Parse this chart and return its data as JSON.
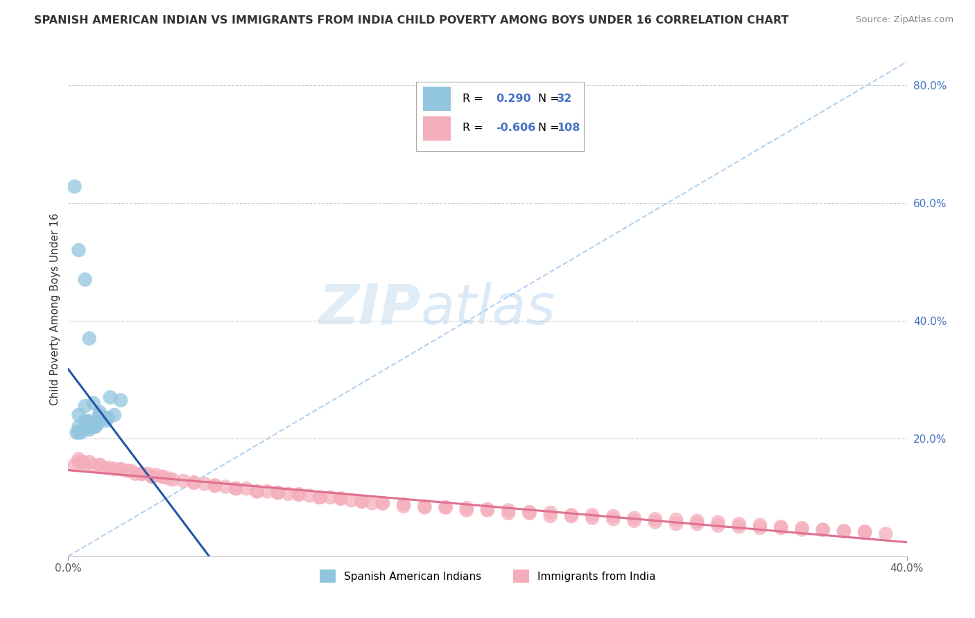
{
  "title": "SPANISH AMERICAN INDIAN VS IMMIGRANTS FROM INDIA CHILD POVERTY AMONG BOYS UNDER 16 CORRELATION CHART",
  "source": "Source: ZipAtlas.com",
  "ylabel": "Child Poverty Among Boys Under 16",
  "xlim": [
    0.0,
    0.4
  ],
  "ylim": [
    0.0,
    0.84
  ],
  "xticks": [
    0.0,
    0.4
  ],
  "xticklabels": [
    "0.0%",
    "40.0%"
  ],
  "yticks": [
    0.0,
    0.2,
    0.4,
    0.6,
    0.8
  ],
  "yticklabels": [
    "",
    "20.0%",
    "40.0%",
    "60.0%",
    "80.0%"
  ],
  "right_ytick_color": "#4472C4",
  "blue_color": "#92C5DE",
  "pink_color": "#F4AEBB",
  "blue_line_color": "#2255AA",
  "pink_line_color": "#E07090",
  "blue_R": 0.29,
  "blue_N": 32,
  "pink_R": -0.606,
  "pink_N": 108,
  "watermark_zip": "ZIP",
  "watermark_atlas": "atlas",
  "legend_R_color": "#000000",
  "legend_val_color": "#4472C4",
  "diag_line_color": "#AACCEE",
  "grid_color": "#CCCCCC",
  "blue_x": [
    0.003,
    0.005,
    0.008,
    0.01,
    0.012,
    0.005,
    0.008,
    0.015,
    0.01,
    0.02,
    0.008,
    0.005,
    0.01,
    0.015,
    0.012,
    0.018,
    0.022,
    0.008,
    0.005,
    0.012,
    0.016,
    0.01,
    0.006,
    0.009,
    0.014,
    0.007,
    0.011,
    0.013,
    0.018,
    0.004,
    0.025,
    0.019
  ],
  "blue_y": [
    0.628,
    0.52,
    0.47,
    0.37,
    0.26,
    0.24,
    0.255,
    0.24,
    0.23,
    0.27,
    0.23,
    0.22,
    0.225,
    0.245,
    0.22,
    0.235,
    0.24,
    0.215,
    0.21,
    0.22,
    0.235,
    0.215,
    0.21,
    0.22,
    0.225,
    0.215,
    0.225,
    0.22,
    0.23,
    0.21,
    0.265,
    0.235
  ],
  "pink_x": [
    0.003,
    0.005,
    0.007,
    0.01,
    0.008,
    0.012,
    0.015,
    0.018,
    0.02,
    0.022,
    0.025,
    0.028,
    0.03,
    0.032,
    0.035,
    0.038,
    0.04,
    0.042,
    0.045,
    0.048,
    0.05,
    0.055,
    0.06,
    0.065,
    0.07,
    0.075,
    0.08,
    0.085,
    0.09,
    0.095,
    0.1,
    0.105,
    0.11,
    0.115,
    0.12,
    0.125,
    0.13,
    0.135,
    0.14,
    0.145,
    0.15,
    0.16,
    0.17,
    0.18,
    0.19,
    0.2,
    0.21,
    0.22,
    0.23,
    0.24,
    0.25,
    0.26,
    0.27,
    0.28,
    0.29,
    0.3,
    0.31,
    0.32,
    0.33,
    0.34,
    0.35,
    0.36,
    0.37,
    0.38,
    0.005,
    0.015,
    0.025,
    0.035,
    0.045,
    0.06,
    0.08,
    0.1,
    0.12,
    0.14,
    0.16,
    0.18,
    0.2,
    0.22,
    0.24,
    0.26,
    0.28,
    0.3,
    0.32,
    0.34,
    0.36,
    0.38,
    0.04,
    0.07,
    0.09,
    0.11,
    0.13,
    0.15,
    0.17,
    0.19,
    0.21,
    0.23,
    0.25,
    0.27,
    0.29,
    0.31,
    0.33,
    0.35,
    0.37,
    0.39
  ],
  "pink_y": [
    0.155,
    0.165,
    0.16,
    0.16,
    0.155,
    0.155,
    0.155,
    0.15,
    0.15,
    0.148,
    0.148,
    0.145,
    0.145,
    0.14,
    0.14,
    0.14,
    0.135,
    0.138,
    0.135,
    0.132,
    0.13,
    0.128,
    0.125,
    0.123,
    0.12,
    0.118,
    0.115,
    0.115,
    0.11,
    0.11,
    0.108,
    0.106,
    0.105,
    0.103,
    0.1,
    0.1,
    0.098,
    0.095,
    0.093,
    0.09,
    0.09,
    0.088,
    0.085,
    0.083,
    0.082,
    0.08,
    0.078,
    0.075,
    0.074,
    0.07,
    0.07,
    0.068,
    0.065,
    0.063,
    0.062,
    0.06,
    0.058,
    0.055,
    0.053,
    0.05,
    0.048,
    0.045,
    0.043,
    0.04,
    0.16,
    0.155,
    0.148,
    0.14,
    0.135,
    0.125,
    0.115,
    0.108,
    0.1,
    0.093,
    0.085,
    0.083,
    0.078,
    0.073,
    0.068,
    0.063,
    0.058,
    0.055,
    0.05,
    0.048,
    0.045,
    0.042,
    0.135,
    0.12,
    0.11,
    0.105,
    0.098,
    0.09,
    0.083,
    0.078,
    0.073,
    0.068,
    0.065,
    0.06,
    0.055,
    0.052,
    0.048,
    0.045,
    0.042,
    0.038
  ]
}
